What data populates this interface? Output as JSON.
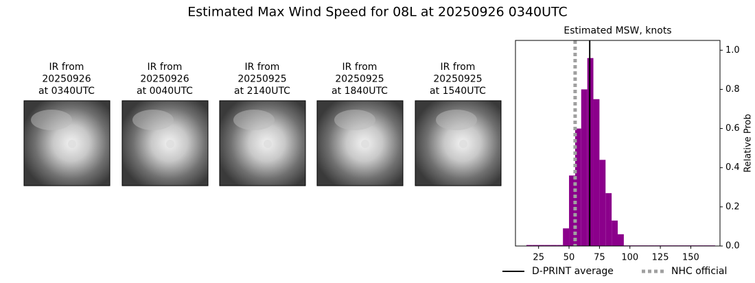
{
  "title": "Estimated Max Wind Speed for 08L at 20250926 0340UTC",
  "images": [
    {
      "lines": [
        "IR from",
        "20250926",
        "at 0340UTC"
      ]
    },
    {
      "lines": [
        "IR from",
        "20250926",
        "at 0040UTC"
      ]
    },
    {
      "lines": [
        "IR from",
        "20250925",
        "at 2140UTC"
      ]
    },
    {
      "lines": [
        "IR from",
        "20250925",
        "at 1840UTC"
      ]
    },
    {
      "lines": [
        "IR from",
        "20250925",
        "at 1540UTC"
      ]
    }
  ],
  "chart_data": {
    "type": "histogram",
    "title": "Estimated MSW, knots",
    "y_label": "Relative Prob",
    "color": "#8b008b",
    "bins": [
      15,
      20,
      25,
      30,
      35,
      40,
      45,
      50,
      55,
      60,
      65,
      70,
      75,
      80,
      85,
      90,
      95,
      100,
      105,
      110,
      115,
      120,
      125,
      130,
      135,
      140,
      145,
      150,
      155,
      160,
      165,
      170
    ],
    "values": [
      0.005,
      0.005,
      0.005,
      0.005,
      0.005,
      0.005,
      0.09,
      0.36,
      0.6,
      0.8,
      0.96,
      0.75,
      0.44,
      0.27,
      0.13,
      0.06,
      0.003,
      0.003,
      0.003,
      0.003,
      0.003,
      0.003,
      0.003,
      0.003,
      0.003,
      0.003,
      0.003,
      0.003,
      0.003,
      0.003,
      0.003
    ],
    "xlim": [
      6,
      174
    ],
    "ylim": [
      0,
      1.05
    ],
    "xticks": [
      25,
      50,
      75,
      100,
      125,
      150
    ],
    "yticks": [
      {
        "value": 0,
        "label": "0.0"
      },
      0.2,
      0.4,
      0.6,
      0.8,
      {
        "value": 1,
        "label": "1.0"
      }
    ],
    "lines": [
      {
        "name": "D-PRINT average",
        "value": 67,
        "color": "#000000",
        "style": "solid"
      },
      {
        "name": "NHC official",
        "value": 55,
        "color": "#a0a0a0",
        "style": "dotted"
      }
    ]
  }
}
